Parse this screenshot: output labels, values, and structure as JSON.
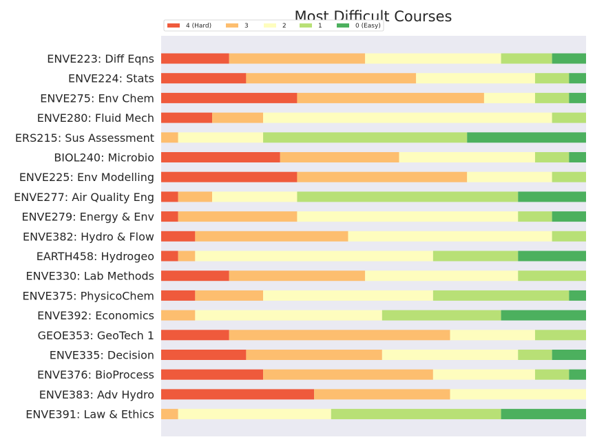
{
  "chart_data": {
    "type": "bar",
    "orientation": "horizontal",
    "stacked": true,
    "title": "Most Difficult Courses",
    "xlabel": "",
    "ylabel": "",
    "xlim": [
      0,
      25
    ],
    "grid": false,
    "legend_position": "top-left",
    "categories": [
      "ENVE223: Diff Eqns",
      "ENVE224: Stats",
      "ENVE275: Env Chem",
      "ENVE280: Fluid Mech",
      "ERS215: Sus Assessment",
      "BIOL240: Microbio",
      "ENVE225: Env Modelling",
      "ENVE277: Air Quality Eng",
      "ENVE279: Energy & Env",
      "ENVE382: Hydro & Flow",
      "EARTH458: Hydrogeo",
      "ENVE330: Lab Methods",
      "ENVE375: PhysicoChem",
      "ENVE392: Economics",
      "GEOE353: GeoTech 1",
      "ENVE335: Decision",
      "ENVE376: BioProcess",
      "ENVE383: Adv Hydro",
      "ENVE391: Law & Ethics"
    ],
    "series": [
      {
        "name": "4 (Hard)",
        "color": "#ef5a3c",
        "values": [
          4,
          5,
          8,
          3,
          0,
          7,
          8,
          1,
          1,
          2,
          1,
          4,
          2,
          0,
          4,
          5,
          6,
          9,
          0
        ]
      },
      {
        "name": "3",
        "color": "#fdbe6f",
        "values": [
          8,
          10,
          11,
          3,
          1,
          7,
          10,
          2,
          7,
          9,
          1,
          8,
          4,
          2,
          13,
          8,
          10,
          8,
          1
        ]
      },
      {
        "name": "2",
        "color": "#fefdbe",
        "values": [
          8,
          7,
          3,
          17,
          5,
          8,
          5,
          5,
          13,
          12,
          14,
          9,
          10,
          11,
          5,
          8,
          6,
          8,
          9
        ]
      },
      {
        "name": "1",
        "color": "#b8e076",
        "values": [
          3,
          2,
          2,
          2,
          12,
          2,
          2,
          13,
          2,
          2,
          5,
          4,
          8,
          7,
          3,
          2,
          2,
          0,
          10
        ]
      },
      {
        "name": "0 (Easy)",
        "color": "#4cb05e",
        "values": [
          2,
          1,
          1,
          0,
          7,
          1,
          0,
          4,
          2,
          0,
          4,
          0,
          1,
          5,
          0,
          2,
          1,
          0,
          5
        ]
      }
    ]
  }
}
